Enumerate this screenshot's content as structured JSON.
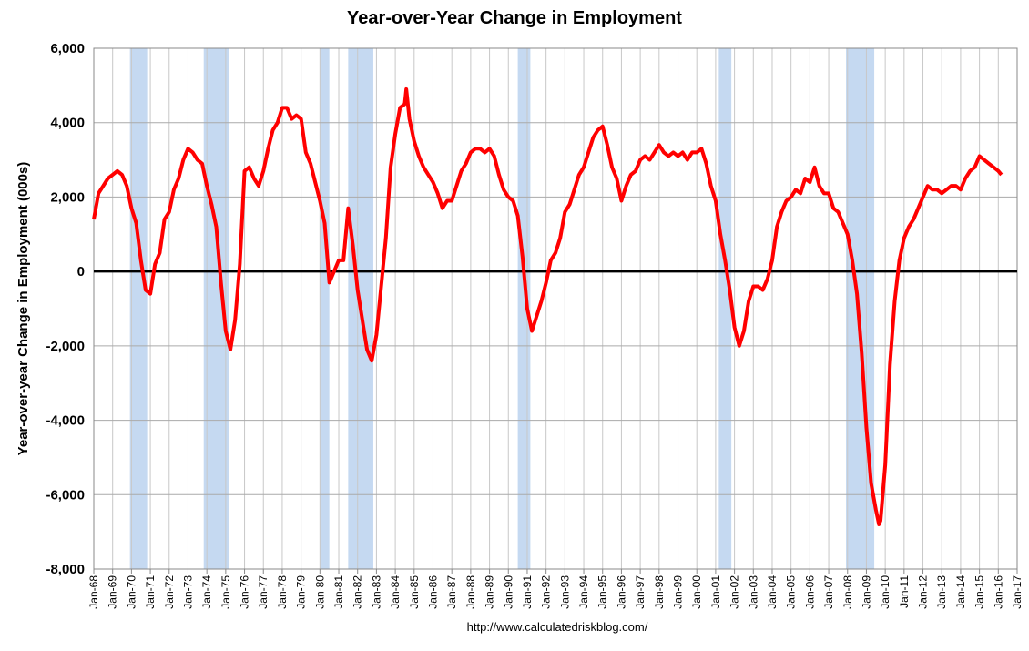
{
  "chart_data": {
    "type": "line",
    "title": "Year-over-Year Change in Employment",
    "y_label": "Year-over-year Change in Employment (000s)",
    "source": "http://www.calculatedriskblog.com/",
    "ylim": [
      -8000,
      6000
    ],
    "yticks": [
      {
        "value": -8000,
        "label": "-8,000"
      },
      {
        "value": -6000,
        "label": "-6,000"
      },
      {
        "value": -4000,
        "label": "-4,000"
      },
      {
        "value": -2000,
        "label": "-2,000"
      },
      0,
      {
        "value": 2000,
        "label": "2,000"
      },
      {
        "value": 4000,
        "label": "4,000"
      },
      {
        "value": 6000,
        "label": "6,000"
      }
    ],
    "xticks": [
      "Jan-68",
      "Jan-69",
      "Jan-70",
      "Jan-71",
      "Jan-72",
      "Jan-73",
      "Jan-74",
      "Jan-75",
      "Jan-76",
      "Jan-77",
      "Jan-78",
      "Jan-79",
      "Jan-80",
      "Jan-81",
      "Jan-82",
      "Jan-83",
      "Jan-84",
      "Jan-85",
      "Jan-86",
      "Jan-87",
      "Jan-88",
      "Jan-89",
      "Jan-90",
      "Jan-91",
      "Jan-92",
      "Jan-93",
      "Jan-94",
      "Jan-95",
      "Jan-96",
      "Jan-97",
      "Jan-98",
      "Jan-99",
      "Jan-00",
      "Jan-01",
      "Jan-02",
      "Jan-03",
      "Jan-04",
      "Jan-05",
      "Jan-06",
      "Jan-07",
      "Jan-08",
      "Jan-09",
      "Jan-10",
      "Jan-11",
      "Jan-12",
      "Jan-13",
      "Jan-14",
      "Jan-15",
      "Jan-16",
      "Jan-17"
    ],
    "grid": true,
    "recession_color": "#c5d9f1",
    "recessions": [
      [
        "Dec-69",
        "Nov-70"
      ],
      [
        "Nov-73",
        "Mar-75"
      ],
      [
        "Jan-80",
        "Jul-80"
      ],
      [
        "Jul-81",
        "Nov-82"
      ],
      [
        "Jul-90",
        "Mar-91"
      ],
      [
        "Mar-01",
        "Nov-01"
      ],
      [
        "Dec-07",
        "Jun-09"
      ]
    ],
    "series": [
      {
        "color": "#ff0000",
        "x": [
          "Jan-68",
          "Apr-68",
          "Jul-68",
          "Oct-68",
          "Jan-69",
          "Apr-69",
          "Jul-69",
          "Oct-69",
          "Jan-70",
          "Apr-70",
          "Jul-70",
          "Oct-70",
          "Jan-71",
          "Apr-71",
          "Jul-71",
          "Oct-71",
          "Jan-72",
          "Apr-72",
          "Jul-72",
          "Oct-72",
          "Jan-73",
          "Apr-73",
          "Jul-73",
          "Oct-73",
          "Jan-74",
          "Apr-74",
          "Jul-74",
          "Oct-74",
          "Jan-75",
          "Apr-75",
          "Jul-75",
          "Oct-75",
          "Jan-76",
          "Apr-76",
          "Jul-76",
          "Oct-76",
          "Jan-77",
          "Apr-77",
          "Jul-77",
          "Oct-77",
          "Jan-78",
          "Apr-78",
          "Jul-78",
          "Oct-78",
          "Jan-79",
          "Apr-79",
          "Jul-79",
          "Oct-79",
          "Jan-80",
          "Apr-80",
          "Jul-80",
          "Oct-80",
          "Jan-81",
          "Apr-81",
          "Jul-81",
          "Oct-81",
          "Jan-82",
          "Apr-82",
          "Jul-82",
          "Oct-82",
          "Jan-83",
          "Apr-83",
          "Jul-83",
          "Oct-83",
          "Jan-84",
          "Apr-84",
          "Jul-84",
          "Aug-84",
          "Oct-84",
          "Jan-85",
          "Apr-85",
          "Jul-85",
          "Oct-85",
          "Jan-86",
          "Apr-86",
          "Jul-86",
          "Oct-86",
          "Jan-87",
          "Apr-87",
          "Jul-87",
          "Oct-87",
          "Jan-88",
          "Apr-88",
          "Jul-88",
          "Oct-88",
          "Jan-89",
          "Apr-89",
          "Jul-89",
          "Oct-89",
          "Jan-90",
          "Apr-90",
          "Jul-90",
          "Oct-90",
          "Jan-91",
          "Apr-91",
          "Jul-91",
          "Oct-91",
          "Jan-92",
          "Apr-92",
          "Jul-92",
          "Oct-92",
          "Jan-93",
          "Apr-93",
          "Jul-93",
          "Oct-93",
          "Jan-94",
          "Apr-94",
          "Jul-94",
          "Oct-94",
          "Jan-95",
          "Apr-95",
          "Jul-95",
          "Oct-95",
          "Jan-96",
          "Apr-96",
          "Jul-96",
          "Oct-96",
          "Jan-97",
          "Apr-97",
          "Jul-97",
          "Oct-97",
          "Jan-98",
          "Apr-98",
          "Jul-98",
          "Oct-98",
          "Jan-99",
          "Apr-99",
          "Jul-99",
          "Oct-99",
          "Jan-00",
          "Apr-00",
          "Jul-00",
          "Oct-00",
          "Jan-01",
          "Apr-01",
          "Jul-01",
          "Oct-01",
          "Jan-02",
          "Apr-02",
          "Jul-02",
          "Oct-02",
          "Jan-03",
          "Apr-03",
          "Jul-03",
          "Oct-03",
          "Jan-04",
          "Apr-04",
          "Jul-04",
          "Oct-04",
          "Jan-05",
          "Apr-05",
          "Jul-05",
          "Oct-05",
          "Jan-06",
          "Apr-06",
          "Jul-06",
          "Oct-06",
          "Jan-07",
          "Apr-07",
          "Jul-07",
          "Oct-07",
          "Jan-08",
          "Apr-08",
          "Jul-08",
          "Oct-08",
          "Jan-09",
          "Apr-09",
          "Jul-09",
          "Sep-09",
          "Oct-09",
          "Jan-10",
          "Apr-10",
          "Jul-10",
          "Oct-10",
          "Jan-11",
          "Apr-11",
          "Jul-11",
          "Oct-11",
          "Jan-12",
          "Apr-12",
          "Jul-12",
          "Oct-12",
          "Jan-13",
          "Apr-13",
          "Jul-13",
          "Oct-13",
          "Jan-14",
          "Apr-14",
          "Jul-14",
          "Oct-14",
          "Jan-15",
          "Apr-15",
          "Jul-15",
          "Oct-15",
          "Jan-16",
          "Mar-16"
        ],
        "values": [
          1400,
          2100,
          2300,
          2500,
          2600,
          2700,
          2600,
          2300,
          1700,
          1300,
          300,
          -500,
          -600,
          200,
          500,
          1400,
          1600,
          2200,
          2500,
          3000,
          3300,
          3200,
          3000,
          2900,
          2300,
          1800,
          1200,
          -300,
          -1600,
          -2100,
          -1300,
          200,
          2700,
          2800,
          2500,
          2300,
          2700,
          3300,
          3800,
          4000,
          4400,
          4400,
          4100,
          4200,
          4100,
          3200,
          2900,
          2400,
          1900,
          1300,
          -300,
          0,
          300,
          300,
          1700,
          700,
          -500,
          -1300,
          -2100,
          -2400,
          -1700,
          -400,
          900,
          2800,
          3700,
          4400,
          4500,
          4900,
          4100,
          3500,
          3100,
          2800,
          2600,
          2400,
          2100,
          1700,
          1900,
          1900,
          2300,
          2700,
          2900,
          3200,
          3300,
          3300,
          3200,
          3300,
          3100,
          2600,
          2200,
          2000,
          1900,
          1500,
          400,
          -1000,
          -1600,
          -1200,
          -800,
          -300,
          300,
          500,
          900,
          1600,
          1800,
          2200,
          2600,
          2800,
          3200,
          3600,
          3800,
          3900,
          3400,
          2800,
          2500,
          1900,
          2300,
          2600,
          2700,
          3000,
          3100,
          3000,
          3200,
          3400,
          3200,
          3100,
          3200,
          3100,
          3200,
          3000,
          3200,
          3200,
          3300,
          2900,
          2300,
          1900,
          1000,
          300,
          -500,
          -1500,
          -2000,
          -1600,
          -800,
          -400,
          -400,
          -500,
          -200,
          300,
          1200,
          1600,
          1900,
          2000,
          2200,
          2100,
          2500,
          2400,
          2800,
          2300,
          2100,
          2100,
          1700,
          1600,
          1300,
          1000,
          300,
          -600,
          -2200,
          -4200,
          -5700,
          -6400,
          -6800,
          -6700,
          -5200,
          -2500,
          -800,
          300,
          900,
          1200,
          1400,
          1700,
          2000,
          2300,
          2200,
          2200,
          2100,
          2200,
          2300,
          2300,
          2200,
          2500,
          2700,
          2800,
          3100,
          3000,
          2900,
          2800,
          2700,
          2600
        ]
      }
    ]
  }
}
